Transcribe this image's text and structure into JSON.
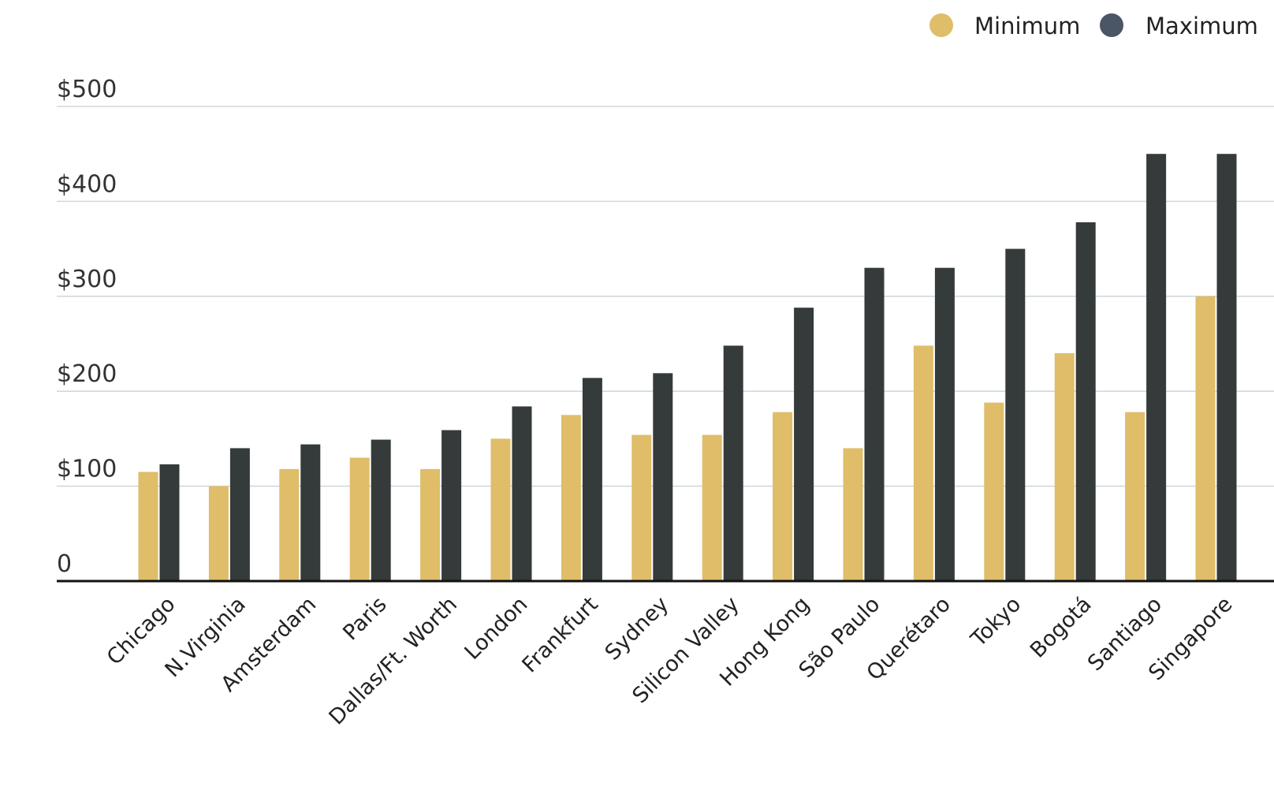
{
  "chart_data": {
    "type": "bar",
    "categories": [
      "Chicago",
      "N.Virginia",
      "Amsterdam",
      "Paris",
      "Dallas/Ft. Worth",
      "London",
      "Frankfurt",
      "Sydney",
      "Silicon Valley",
      "Hong Kong",
      "São Paulo",
      "Querétaro",
      "Tokyo",
      "Bogotá",
      "Santiago",
      "Singapore"
    ],
    "series": [
      {
        "name": "Minimum",
        "color": "#dfbd69",
        "values": [
          115,
          100,
          118,
          130,
          118,
          150,
          175,
          154,
          154,
          178,
          140,
          248,
          188,
          240,
          178,
          300
        ]
      },
      {
        "name": "Maximum",
        "color": "#353a3a",
        "values": [
          123,
          140,
          144,
          149,
          159,
          184,
          214,
          219,
          248,
          288,
          330,
          330,
          350,
          378,
          450,
          450
        ]
      }
    ],
    "ylim": [
      0,
      500
    ],
    "yticks": [
      0,
      100,
      200,
      300,
      400,
      500
    ],
    "ytick_labels": [
      "0",
      "$100",
      "$200",
      "$300",
      "$400",
      "$500"
    ],
    "legend": {
      "placement": "top-right",
      "items": [
        {
          "label": "Minimum",
          "color": "#dfbd69"
        },
        {
          "label": "Maximum",
          "color": "#4a5566"
        }
      ]
    },
    "grid": true
  }
}
